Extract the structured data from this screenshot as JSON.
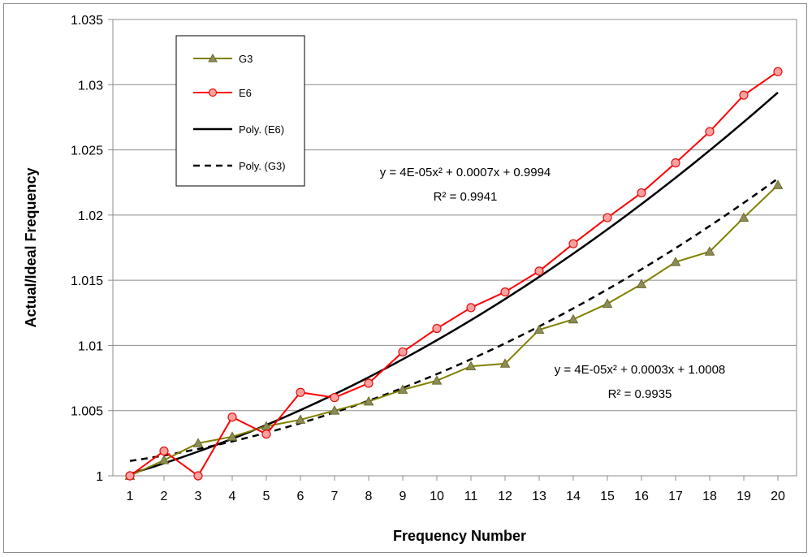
{
  "chart_data": {
    "type": "line",
    "title": "",
    "xlabel": "Frequency Number",
    "ylabel": "Actual/Ideal Frequency",
    "x": [
      1,
      2,
      3,
      4,
      5,
      6,
      7,
      8,
      9,
      10,
      11,
      12,
      13,
      14,
      15,
      16,
      17,
      18,
      19,
      20
    ],
    "xlim": [
      1,
      20
    ],
    "ylim": [
      1,
      1.035
    ],
    "y_ticks": [
      "1",
      "1.005",
      "1.01",
      "1.015",
      "1.02",
      "1.025",
      "1.03",
      "1.035"
    ],
    "x_ticks": [
      "1",
      "2",
      "3",
      "4",
      "5",
      "6",
      "7",
      "8",
      "9",
      "10",
      "11",
      "12",
      "13",
      "14",
      "15",
      "16",
      "17",
      "18",
      "19",
      "20"
    ],
    "grid": "horizontal",
    "legend_position": "top-left",
    "series": [
      {
        "name": "G3",
        "color": "#808000",
        "marker": "triangle",
        "values": [
          1.0,
          1.0012,
          1.0025,
          1.003,
          1.0038,
          1.0043,
          1.005,
          1.0057,
          1.0066,
          1.0073,
          1.0084,
          1.0086,
          1.0112,
          1.012,
          1.0132,
          1.0147,
          1.0164,
          1.0172,
          1.0198,
          1.0223
        ]
      },
      {
        "name": "E6",
        "color": "#ff0000",
        "marker": "circle",
        "values": [
          1.0,
          1.0019,
          1.0,
          1.0045,
          1.0032,
          1.0064,
          1.006,
          1.0071,
          1.0095,
          1.0113,
          1.0129,
          1.0141,
          1.0157,
          1.0178,
          1.0198,
          1.0217,
          1.024,
          1.0264,
          1.0292,
          1.031
        ]
      }
    ],
    "trendlines": [
      {
        "name": "Poly. (E6)",
        "color": "#000000",
        "style": "solid",
        "fit_of": "E6",
        "coefficients": [
          4e-05,
          0.0007,
          0.9994
        ],
        "equation": "y = 4E-05x² + 0.0007x + 0.9994",
        "r2": "R² = 0.9941"
      },
      {
        "name": "Poly. (G3)",
        "color": "#000000",
        "style": "dashed",
        "fit_of": "G3",
        "coefficients": [
          4e-05,
          0.0003,
          1.0008
        ],
        "equation": "y = 4E-05x² + 0.0003x + 1.0008",
        "r2": "R² = 0.9935"
      }
    ]
  }
}
